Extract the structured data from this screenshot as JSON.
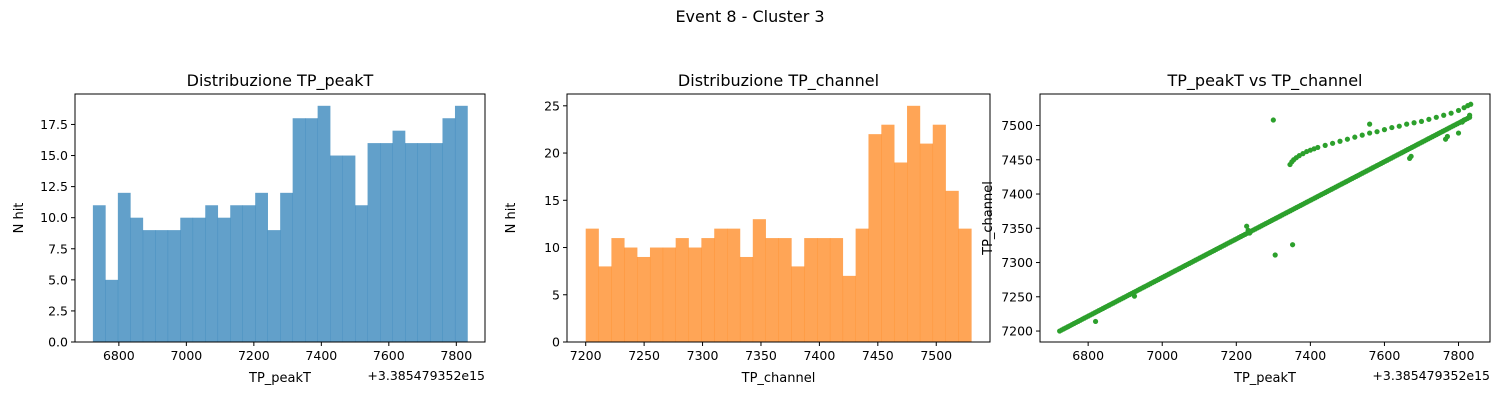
{
  "figure": {
    "suptitle": "Event 8 - Cluster 3"
  },
  "colors": {
    "hist1": "#1f77b4",
    "hist2": "#ff7f0e",
    "scatter": "#2ca02c",
    "alpha": 0.7
  },
  "chart_data": [
    {
      "type": "bar",
      "subtype": "histogram",
      "title": "Distribuzione TP_peakT",
      "xlabel": "TP_peakT",
      "ylabel": "N hit",
      "x_offset_label": "+3.385479352e15",
      "xlim": [
        6670,
        7885
      ],
      "ylim": [
        0,
        19.95
      ],
      "xticks": [
        6800,
        7000,
        7200,
        7400,
        7600,
        7800
      ],
      "xtick_labels": [
        "6800",
        "7000",
        "7200",
        "7400",
        "7600",
        "7800"
      ],
      "yticks": [
        0,
        2.5,
        5,
        7.5,
        10,
        12.5,
        15,
        17.5
      ],
      "ytick_labels": [
        "0.0",
        "2.5",
        "5.0",
        "7.5",
        "10.0",
        "12.5",
        "15.0",
        "17.5"
      ],
      "bin_start": 6723,
      "bin_end": 7833,
      "values": [
        11,
        5,
        12,
        10,
        9,
        9,
        9,
        10,
        10,
        11,
        10,
        11,
        11,
        12,
        9,
        12,
        18,
        18,
        19,
        15,
        15,
        11,
        16,
        16,
        17,
        16,
        16,
        16,
        18,
        19
      ]
    },
    {
      "type": "bar",
      "subtype": "histogram",
      "title": "Distribuzione TP_channel",
      "xlabel": "TP_channel",
      "ylabel": "N hit",
      "xlim": [
        7184,
        7546
      ],
      "ylim": [
        0,
        26.25
      ],
      "xticks": [
        7200,
        7250,
        7300,
        7350,
        7400,
        7450,
        7500
      ],
      "xtick_labels": [
        "7200",
        "7250",
        "7300",
        "7350",
        "7400",
        "7450",
        "7500"
      ],
      "yticks": [
        0,
        5,
        10,
        15,
        20,
        25
      ],
      "ytick_labels": [
        "0",
        "5",
        "10",
        "15",
        "20",
        "25"
      ],
      "bin_start": 7200,
      "bin_end": 7530,
      "values": [
        12,
        8,
        11,
        10,
        9,
        10,
        10,
        11,
        10,
        11,
        12,
        12,
        9,
        13,
        11,
        11,
        8,
        11,
        11,
        11,
        7,
        12,
        22,
        23,
        19,
        25,
        21,
        23,
        16,
        12
      ]
    },
    {
      "type": "scatter",
      "title": "TP_peakT vs TP_channel",
      "xlabel": "TP_peakT",
      "ylabel": "TP_channel",
      "x_offset_label": "+3.385479352e15",
      "xlim": [
        6670,
        7885
      ],
      "ylim": [
        7184,
        7546
      ],
      "xticks": [
        6800,
        7000,
        7200,
        7400,
        7600,
        7800
      ],
      "xtick_labels": [
        "6800",
        "7000",
        "7200",
        "7400",
        "7600",
        "7800"
      ],
      "yticks": [
        7200,
        7250,
        7300,
        7350,
        7400,
        7450,
        7500
      ],
      "ytick_labels": [
        "7200",
        "7250",
        "7300",
        "7350",
        "7400",
        "7450",
        "7500"
      ],
      "main_track": {
        "x_start": 6723,
        "y_start": 7200,
        "x_end": 7830,
        "y_end": 7512,
        "n_points": 200
      },
      "upper_track": [
        [
          7345,
          7443
        ],
        [
          7350,
          7447
        ],
        [
          7355,
          7450
        ],
        [
          7362,
          7453
        ],
        [
          7370,
          7456
        ],
        [
          7380,
          7459
        ],
        [
          7390,
          7462
        ],
        [
          7400,
          7464
        ],
        [
          7410,
          7466
        ],
        [
          7420,
          7468
        ],
        [
          7440,
          7471
        ],
        [
          7460,
          7474
        ],
        [
          7480,
          7477
        ],
        [
          7500,
          7480
        ],
        [
          7520,
          7483
        ],
        [
          7540,
          7486
        ],
        [
          7560,
          7489
        ],
        [
          7580,
          7491
        ],
        [
          7600,
          7494
        ],
        [
          7620,
          7497
        ],
        [
          7640,
          7499
        ],
        [
          7660,
          7502
        ],
        [
          7680,
          7504
        ],
        [
          7700,
          7506
        ],
        [
          7720,
          7509
        ],
        [
          7740,
          7512
        ],
        [
          7760,
          7515
        ],
        [
          7780,
          7518
        ],
        [
          7800,
          7522
        ],
        [
          7815,
          7526
        ],
        [
          7825,
          7529
        ],
        [
          7833,
          7531
        ]
      ],
      "outliers": [
        [
          7300,
          7508
        ],
        [
          7305,
          7311
        ],
        [
          7352,
          7326
        ],
        [
          7228,
          7353
        ],
        [
          7232,
          7347
        ],
        [
          7236,
          7343
        ],
        [
          6820,
          7214
        ],
        [
          6925,
          7251
        ],
        [
          7560,
          7502
        ],
        [
          7668,
          7452
        ],
        [
          7672,
          7455
        ],
        [
          7765,
          7480
        ],
        [
          7770,
          7484
        ],
        [
          7800,
          7489
        ],
        [
          7830,
          7515
        ],
        [
          7810,
          7505
        ],
        [
          7815,
          7508
        ]
      ]
    }
  ]
}
